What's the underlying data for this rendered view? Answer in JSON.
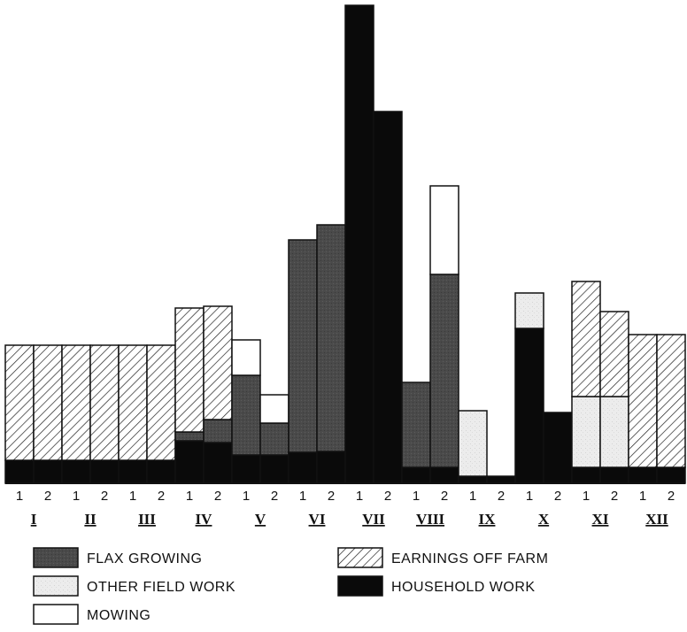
{
  "chart_data": {
    "type": "bar",
    "stacked": true,
    "title": "",
    "xlabel": "",
    "ylabel": "",
    "ylim": [
      0,
      540
    ],
    "half_month_labels": [
      "1",
      "2",
      "1",
      "2",
      "1",
      "2",
      "1",
      "2",
      "1",
      "2",
      "1",
      "2",
      "1",
      "2",
      "1",
      "2",
      "1",
      "2",
      "1",
      "2",
      "1",
      "2",
      "1",
      "2"
    ],
    "months": [
      "I",
      "II",
      "III",
      "IV",
      "V",
      "VI",
      "VII",
      "VIII",
      "IX",
      "X",
      "XI",
      "XII"
    ],
    "series": [
      {
        "name": "HOUSEHOLD WORK",
        "key": "household",
        "values": [
          26,
          26,
          26,
          26,
          26,
          26,
          48,
          46,
          32,
          32,
          35,
          36,
          540,
          420,
          18,
          18,
          8,
          8,
          175,
          80,
          18,
          18,
          18,
          18
        ]
      },
      {
        "name": "FLAX GROWING",
        "key": "flax",
        "values": [
          0,
          0,
          0,
          0,
          0,
          0,
          10,
          26,
          90,
          36,
          240,
          256,
          0,
          0,
          96,
          218,
          0,
          0,
          0,
          0,
          0,
          0,
          0,
          0
        ]
      },
      {
        "name": "OTHER FIELD WORK",
        "key": "other",
        "values": [
          0,
          0,
          0,
          0,
          0,
          0,
          0,
          0,
          0,
          0,
          0,
          0,
          0,
          0,
          0,
          0,
          74,
          0,
          40,
          0,
          80,
          80,
          0,
          0
        ]
      },
      {
        "name": "MOWING",
        "key": "mowing",
        "values": [
          0,
          0,
          0,
          0,
          0,
          0,
          0,
          0,
          40,
          32,
          0,
          0,
          0,
          0,
          0,
          100,
          0,
          0,
          0,
          0,
          0,
          0,
          0,
          0
        ]
      },
      {
        "name": "EARNINGS OFF FARM",
        "key": "earnings",
        "values": [
          130,
          130,
          130,
          130,
          130,
          130,
          140,
          128,
          0,
          0,
          0,
          0,
          0,
          0,
          0,
          0,
          0,
          0,
          0,
          0,
          130,
          96,
          150,
          150
        ]
      }
    ],
    "legend": {
      "placement": "bottom",
      "items": [
        {
          "label": "FLAX GROWING",
          "key": "flax"
        },
        {
          "label": "OTHER FIELD WORK",
          "key": "other"
        },
        {
          "label": "MOWING",
          "key": "mowing"
        },
        {
          "label": "EARNINGS OFF FARM",
          "key": "earnings"
        },
        {
          "label": "HOUSEHOLD WORK",
          "key": "household"
        }
      ]
    },
    "colors": {
      "household": "#0a0a0a",
      "flax": "#4a4a4a",
      "other": "#e6e6e6",
      "mowing": "#ffffff",
      "earnings": "#ffffff",
      "hatch": "#222222",
      "outline": "#111111"
    },
    "grid": false
  }
}
